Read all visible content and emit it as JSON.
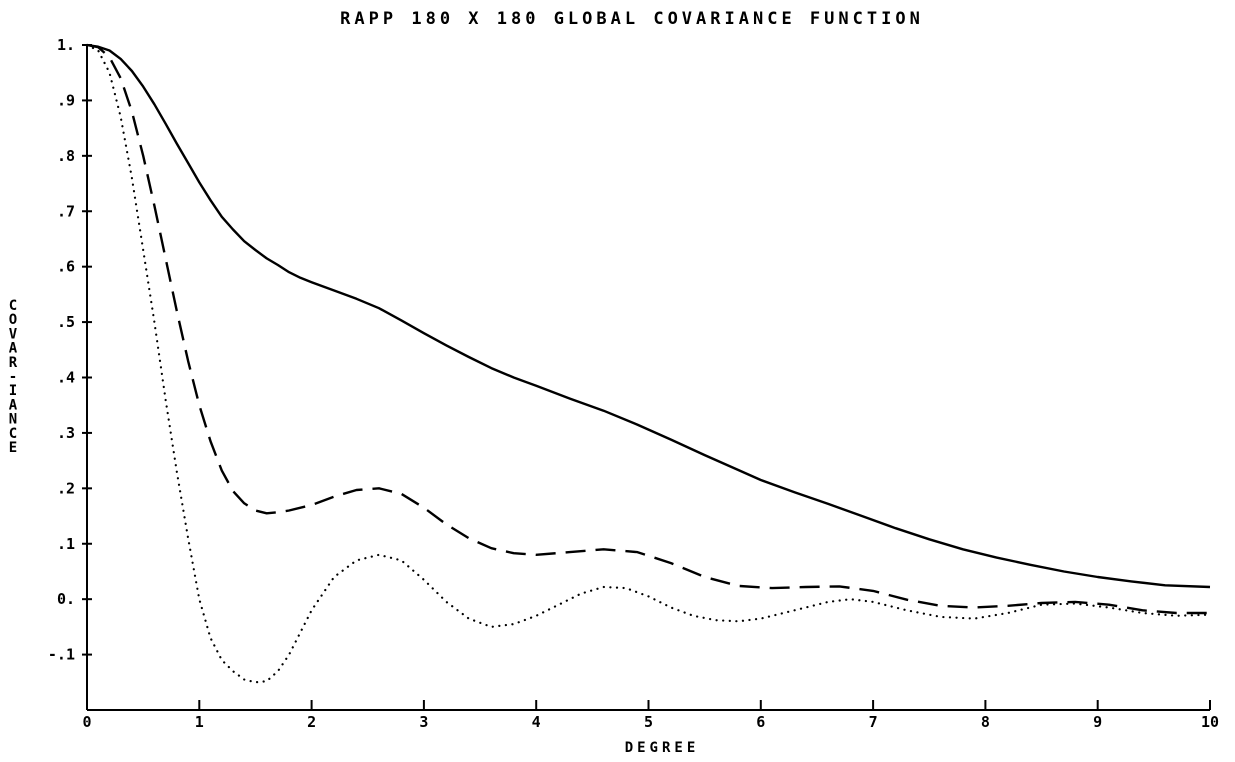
{
  "chart_data": {
    "type": "line",
    "title": "RAPP 180 X 180 GLOBAL COVARIANCE FUNCTION",
    "xlabel": "DEGREE",
    "ylabel": "COVARIANCE",
    "ylabel_display": [
      "C",
      "O",
      "V",
      "A",
      "R",
      "-",
      "I",
      "A",
      "N",
      "C",
      "E"
    ],
    "xlim": [
      0,
      10
    ],
    "ylim": [
      -0.2,
      1.0
    ],
    "xticks": [
      0,
      1,
      2,
      3,
      4,
      5,
      6,
      7,
      8,
      9,
      10
    ],
    "xtick_labels": [
      "0",
      "1",
      "2",
      "3",
      "4",
      "5",
      "6",
      "7",
      "8",
      "9",
      "10"
    ],
    "yticks": [
      1.0,
      0.9,
      0.8,
      0.7,
      0.6,
      0.5,
      0.4,
      0.3,
      0.2,
      0.1,
      0.0,
      -0.1
    ],
    "ytick_labels": [
      "1.",
      ".9",
      ".8",
      ".7",
      ".6",
      ".5",
      ".4",
      ".3",
      ".2",
      ".1",
      "0.",
      "-.1"
    ],
    "grid": false,
    "series": [
      {
        "style": "solid",
        "x": [
          0,
          0.1,
          0.2,
          0.3,
          0.4,
          0.5,
          0.6,
          0.7,
          0.8,
          0.9,
          1.0,
          1.1,
          1.2,
          1.3,
          1.4,
          1.5,
          1.6,
          1.7,
          1.8,
          1.9,
          2.0,
          2.2,
          2.4,
          2.6,
          2.8,
          3.0,
          3.2,
          3.4,
          3.6,
          3.8,
          4.0,
          4.3,
          4.6,
          4.9,
          5.2,
          5.5,
          5.8,
          6.0,
          6.3,
          6.6,
          6.9,
          7.2,
          7.5,
          7.8,
          8.1,
          8.4,
          8.7,
          9.0,
          9.3,
          9.6,
          10.0
        ],
        "y": [
          1.0,
          0.997,
          0.99,
          0.975,
          0.953,
          0.925,
          0.893,
          0.858,
          0.822,
          0.787,
          0.752,
          0.72,
          0.69,
          0.667,
          0.646,
          0.63,
          0.615,
          0.603,
          0.59,
          0.58,
          0.572,
          0.557,
          0.542,
          0.525,
          0.503,
          0.48,
          0.458,
          0.437,
          0.417,
          0.4,
          0.385,
          0.362,
          0.34,
          0.315,
          0.288,
          0.26,
          0.233,
          0.215,
          0.193,
          0.172,
          0.15,
          0.128,
          0.108,
          0.09,
          0.075,
          0.062,
          0.05,
          0.04,
          0.032,
          0.025,
          0.022
        ]
      },
      {
        "style": "dashed",
        "x": [
          0,
          0.1,
          0.2,
          0.3,
          0.4,
          0.5,
          0.6,
          0.7,
          0.8,
          0.9,
          1.0,
          1.1,
          1.2,
          1.3,
          1.4,
          1.5,
          1.6,
          1.7,
          1.8,
          2.0,
          2.2,
          2.4,
          2.6,
          2.8,
          3.0,
          3.2,
          3.4,
          3.6,
          3.8,
          4.0,
          4.3,
          4.6,
          4.9,
          5.2,
          5.5,
          5.8,
          6.1,
          6.4,
          6.7,
          7.0,
          7.3,
          7.6,
          7.9,
          8.2,
          8.5,
          8.8,
          9.1,
          9.4,
          9.7,
          10.0
        ],
        "y": [
          1.0,
          0.996,
          0.978,
          0.94,
          0.88,
          0.8,
          0.71,
          0.615,
          0.52,
          0.43,
          0.35,
          0.285,
          0.232,
          0.195,
          0.173,
          0.16,
          0.155,
          0.157,
          0.16,
          0.17,
          0.185,
          0.197,
          0.2,
          0.19,
          0.165,
          0.135,
          0.11,
          0.092,
          0.083,
          0.08,
          0.085,
          0.09,
          0.085,
          0.065,
          0.04,
          0.024,
          0.02,
          0.022,
          0.023,
          0.015,
          -0.001,
          -0.012,
          -0.015,
          -0.012,
          -0.007,
          -0.005,
          -0.01,
          -0.02,
          -0.025,
          -0.025
        ]
      },
      {
        "style": "dotted",
        "x": [
          0,
          0.1,
          0.2,
          0.3,
          0.4,
          0.5,
          0.6,
          0.7,
          0.8,
          0.9,
          1.0,
          1.1,
          1.2,
          1.3,
          1.4,
          1.5,
          1.6,
          1.7,
          1.8,
          1.9,
          2.0,
          2.2,
          2.4,
          2.6,
          2.8,
          3.0,
          3.2,
          3.4,
          3.6,
          3.8,
          4.0,
          4.2,
          4.4,
          4.6,
          4.8,
          5.0,
          5.2,
          5.4,
          5.6,
          5.8,
          6.0,
          6.3,
          6.6,
          6.8,
          7.0,
          7.3,
          7.6,
          7.9,
          8.2,
          8.5,
          8.8,
          9.1,
          9.4,
          9.7,
          10.0
        ],
        "y": [
          1.0,
          0.99,
          0.95,
          0.87,
          0.76,
          0.63,
          0.5,
          0.36,
          0.23,
          0.11,
          0.0,
          -0.07,
          -0.11,
          -0.13,
          -0.145,
          -0.15,
          -0.148,
          -0.13,
          -0.1,
          -0.06,
          -0.02,
          0.04,
          0.07,
          0.08,
          0.07,
          0.035,
          -0.005,
          -0.035,
          -0.05,
          -0.045,
          -0.03,
          -0.01,
          0.01,
          0.022,
          0.02,
          0.005,
          -0.015,
          -0.03,
          -0.038,
          -0.04,
          -0.035,
          -0.02,
          -0.005,
          0.0,
          -0.005,
          -0.02,
          -0.032,
          -0.035,
          -0.025,
          -0.01,
          -0.008,
          -0.015,
          -0.025,
          -0.03,
          -0.028
        ]
      }
    ]
  }
}
